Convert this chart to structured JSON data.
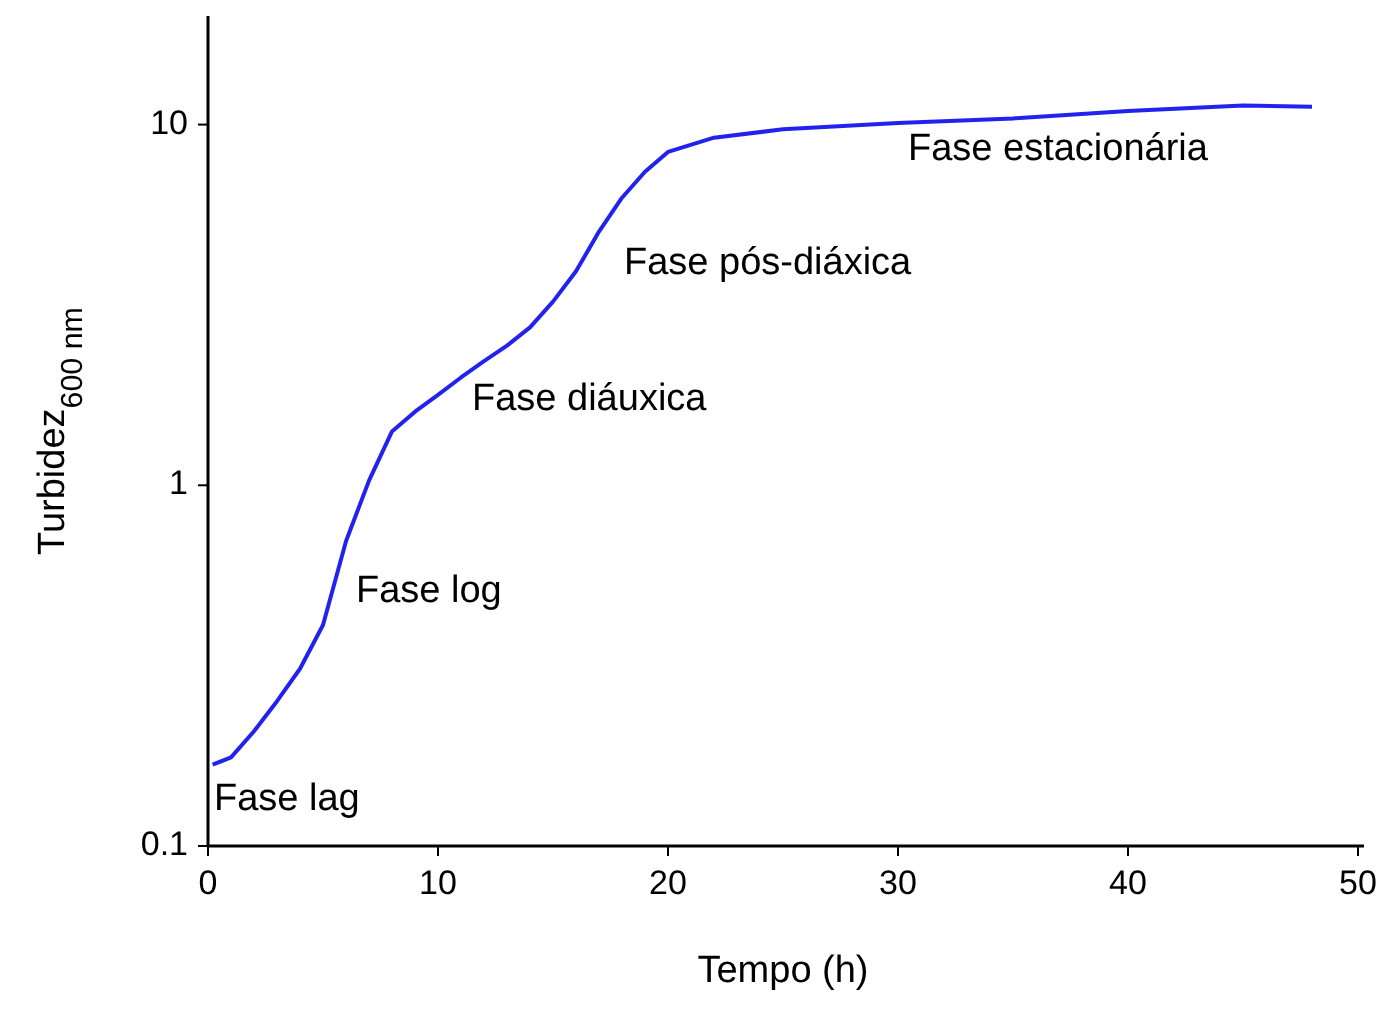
{
  "chart_data": {
    "type": "line",
    "xlabel": "Tempo (h)",
    "ylabel": "Turbidez$_{600 nm}$",
    "log": "y",
    "xlim": [
      0,
      50
    ],
    "xticks": [
      0,
      10,
      20,
      30,
      40,
      50
    ],
    "ylim": [
      0.1,
      20
    ],
    "yticks": [
      0.1,
      1,
      10
    ],
    "grid": false,
    "marker": "none",
    "line_style": "solid",
    "series": [
      {
        "color": "#2222ee",
        "x": [
          0.2,
          1,
          2,
          3,
          4,
          5,
          6,
          7,
          8,
          9,
          10,
          11,
          12,
          13,
          14,
          15,
          16,
          17,
          18,
          19,
          20,
          22,
          25,
          30,
          35,
          40,
          45,
          48
        ],
        "values": [
          0.168,
          0.176,
          0.208,
          0.252,
          0.31,
          0.41,
          0.7,
          1.03,
          1.41,
          1.6,
          1.78,
          1.99,
          2.21,
          2.44,
          2.74,
          3.23,
          3.92,
          5.05,
          6.27,
          7.4,
          8.4,
          9.2,
          9.7,
          10.1,
          10.4,
          10.9,
          11.3,
          11.2
        ]
      }
    ],
    "annotations": [
      "Fase lag",
      "Fase log",
      "Fase diáuxica",
      "Fase pós-diáxica",
      "Fase estacionária"
    ]
  }
}
